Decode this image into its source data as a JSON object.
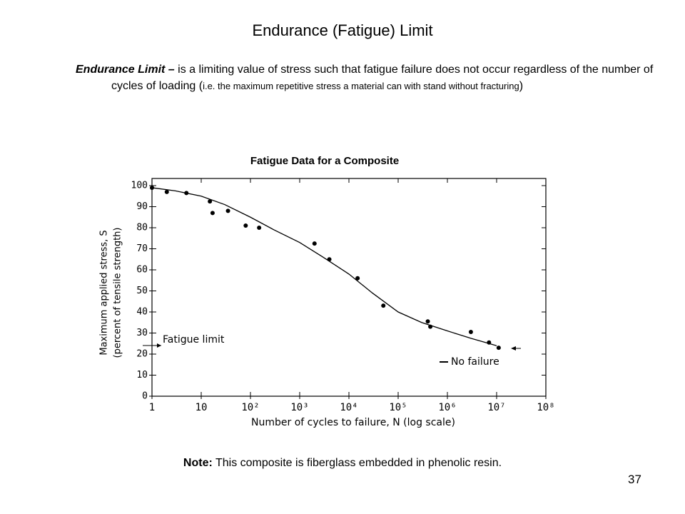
{
  "slide_title": "Endurance (Fatigue) Limit",
  "definition": {
    "term": "Endurance Limit –",
    "body": " is a limiting value of stress such that fatigue failure does not occur regardless of the number of cycles of loading (",
    "detail": "i.e. the maximum repetitive stress a material can with stand without fracturing",
    "close": ")"
  },
  "chart_data": {
    "type": "scatter",
    "title": "Fatigue Data for a Composite",
    "x_label": "Number of cycles to failure, N (log scale)",
    "y_label": [
      "Maximum applied stress, S",
      "(percent of tensile strength)"
    ],
    "log_x": true,
    "xlim": [
      1,
      100000000
    ],
    "xticks": [
      1,
      10,
      {
        "value": 100,
        "label": "10²"
      },
      {
        "value": 1000,
        "label": "10³"
      },
      {
        "value": 10000,
        "label": "10⁴"
      },
      {
        "value": 100000,
        "label": "10⁵"
      },
      {
        "value": 1000000,
        "label": "10⁶"
      },
      {
        "value": 10000000,
        "label": "10⁷"
      },
      {
        "value": 100000000,
        "label": "10⁸"
      }
    ],
    "ylim": [
      0,
      100
    ],
    "yticks": [
      0,
      10,
      20,
      30,
      40,
      50,
      60,
      70,
      80,
      90,
      100
    ],
    "series": [
      {
        "kind": "points",
        "color": "#000000",
        "x": [
          1,
          2,
          5,
          15,
          17,
          35,
          80,
          150,
          2000,
          4000,
          15000,
          50000,
          400000,
          450000,
          3000000,
          7000000,
          11000000
        ],
        "values": [
          99,
          97,
          96.5,
          92.5,
          87,
          88,
          81,
          80,
          72.5,
          65,
          56,
          43,
          35.5,
          33,
          30.5,
          25.5,
          23
        ]
      },
      {
        "kind": "line",
        "color": "#000000",
        "x": [
          1,
          3,
          10,
          30,
          100,
          300,
          1000,
          3000,
          10000,
          30000,
          100000,
          300000,
          1000000,
          3000000,
          10000000
        ],
        "values": [
          99,
          97.5,
          95,
          91,
          85,
          79,
          73,
          66,
          58,
          49,
          40,
          35,
          31,
          27.5,
          24
        ]
      }
    ],
    "annotations": [
      "Fatigue limit",
      "No failure"
    ]
  },
  "note": {
    "label": "Note:",
    "text": " This composite is fiberglass embedded in phenolic resin."
  },
  "page_number": "37"
}
